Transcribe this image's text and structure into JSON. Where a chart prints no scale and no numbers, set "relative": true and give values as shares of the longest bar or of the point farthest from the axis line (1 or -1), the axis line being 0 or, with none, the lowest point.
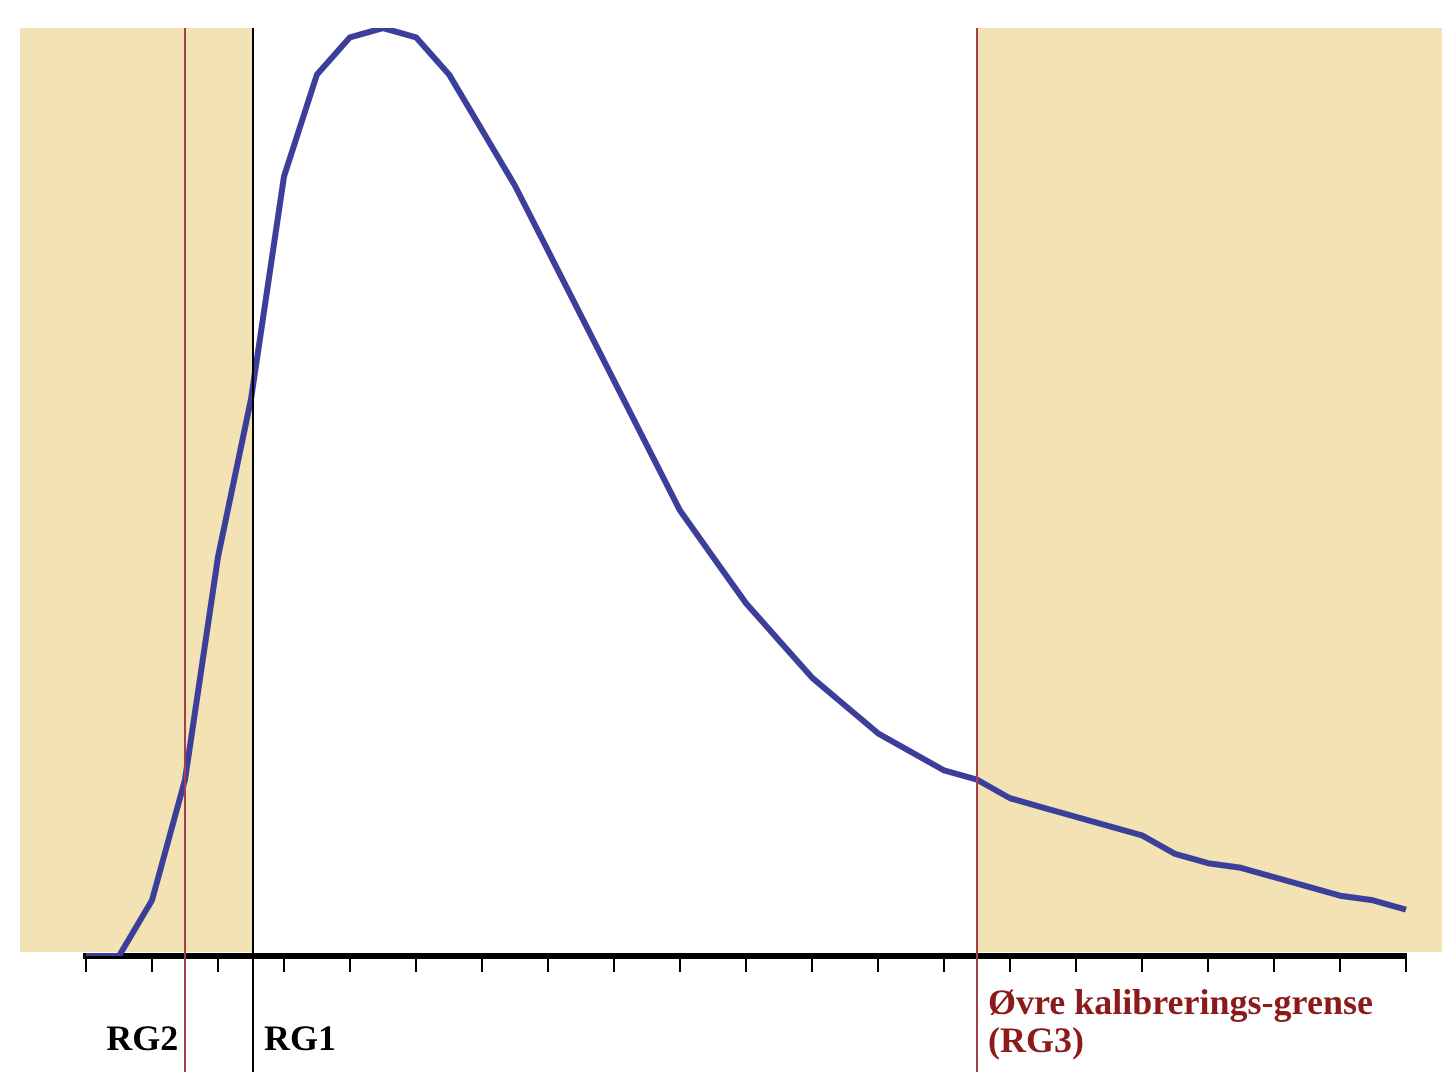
{
  "chart_data": {
    "type": "line",
    "relative": true,
    "marker": "none",
    "grid": false,
    "legend": false,
    "tick_labels": false,
    "categories": [
      null,
      null,
      null,
      null,
      null,
      null,
      null,
      null,
      null,
      null,
      null,
      null,
      null,
      null,
      null,
      null,
      null,
      null,
      null,
      null,
      null,
      null,
      null,
      null,
      null,
      null,
      null,
      null,
      null,
      null,
      null,
      null,
      null,
      null,
      null,
      null,
      null,
      null,
      null,
      null,
      null
    ],
    "series": [
      {
        "color": "#3b3f9a",
        "values": [
          0,
          0,
          0.06,
          0.19,
          0.43,
          0.6,
          0.84,
          0.95,
          0.99,
          1,
          0.99,
          0.95,
          0.89,
          0.83,
          0.76,
          0.69,
          0.62,
          0.55,
          0.48,
          0.43,
          0.38,
          0.34,
          0.3,
          0.27,
          0.24,
          0.22,
          0.2,
          0.19,
          0.17,
          0.16,
          0.15,
          0.14,
          0.13,
          0.11,
          0.1,
          0.095,
          0.085,
          0.075,
          0.065,
          0.06,
          0.05
        ]
      }
    ],
    "annotations": [
      "RG2",
      "RG1",
      "Øvre kalibrerings-grense (RG3)"
    ]
  }
}
